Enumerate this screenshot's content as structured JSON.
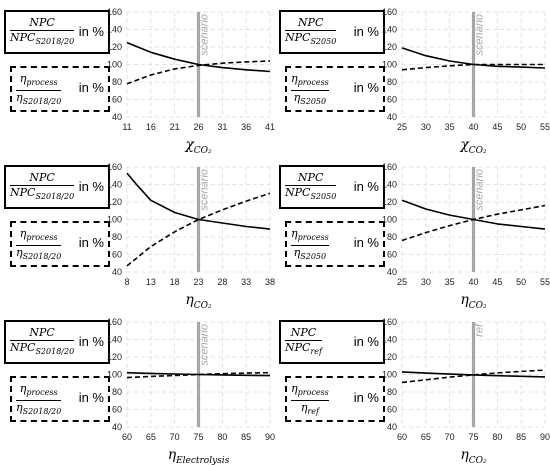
{
  "chart_data": [
    {
      "type": "line",
      "legend": {
        "npc": {
          "num": "NPC",
          "den": "NPC",
          "den_sub": "S2018/20",
          "suffix": "in %"
        },
        "eta": {
          "num": "η",
          "num_sub": "process",
          "den": "η",
          "den_sub": "S2018/20",
          "suffix": "in %"
        }
      },
      "xlabel": {
        "main": "χ",
        "sub": "CO₂"
      },
      "marker": {
        "x": 26,
        "label": "scenario"
      },
      "xlim": [
        11,
        41
      ],
      "xticks": [
        11,
        16,
        21,
        26,
        31,
        36,
        41
      ],
      "ylim": [
        40,
        160
      ],
      "yticks": [
        40,
        60,
        80,
        100,
        120,
        140,
        160
      ],
      "series": [
        {
          "style": "solid",
          "points": [
            [
              11,
              125
            ],
            [
              16,
              114
            ],
            [
              21,
              106
            ],
            [
              26,
              100
            ],
            [
              31,
              96.5
            ],
            [
              36,
              94
            ],
            [
              41,
              92
            ]
          ]
        },
        {
          "style": "dashed",
          "points": [
            [
              11,
              78
            ],
            [
              16,
              88
            ],
            [
              21,
              95
            ],
            [
              26,
              99
            ],
            [
              31,
              101.5
            ],
            [
              36,
              103
            ],
            [
              41,
              104
            ]
          ]
        }
      ]
    },
    {
      "type": "line",
      "legend": {
        "npc": {
          "num": "NPC",
          "den": "NPC",
          "den_sub": "S2050",
          "suffix": "in %"
        },
        "eta": {
          "num": "η",
          "num_sub": "process",
          "den": "η",
          "den_sub": "S2050",
          "suffix": "in %"
        }
      },
      "xlabel": {
        "main": "χ",
        "sub": "CO₂"
      },
      "marker": {
        "x": 40,
        "label": "scenario"
      },
      "xlim": [
        25,
        55
      ],
      "xticks": [
        25,
        30,
        35,
        40,
        45,
        50,
        55
      ],
      "ylim": [
        40,
        160
      ],
      "yticks": [
        40,
        60,
        80,
        100,
        120,
        140,
        160
      ],
      "series": [
        {
          "style": "solid",
          "points": [
            [
              25,
              119
            ],
            [
              30,
              110
            ],
            [
              35,
              104
            ],
            [
              40,
              100
            ],
            [
              45,
              98
            ],
            [
              50,
              97
            ],
            [
              55,
              96
            ]
          ]
        },
        {
          "style": "dashed",
          "points": [
            [
              25,
              94
            ],
            [
              30,
              96.5
            ],
            [
              35,
              98.5
            ],
            [
              40,
              100
            ],
            [
              45,
              100
            ],
            [
              50,
              100
            ],
            [
              55,
              100
            ]
          ]
        }
      ]
    },
    {
      "type": "line",
      "legend": {
        "npc": {
          "num": "NPC",
          "den": "NPC",
          "den_sub": "S2018/20",
          "suffix": "in %"
        },
        "eta": {
          "num": "η",
          "num_sub": "process",
          "den": "η",
          "den_sub": "S2018/20",
          "suffix": "in %"
        }
      },
      "xlabel": {
        "main": "η",
        "sub": "CO₂"
      },
      "marker": {
        "x": 23,
        "label": "scenario"
      },
      "xlim": [
        8,
        38
      ],
      "xticks": [
        8,
        13,
        18,
        23,
        28,
        33,
        38
      ],
      "ylim": [
        40,
        160
      ],
      "yticks": [
        40,
        60,
        80,
        100,
        120,
        140,
        160
      ],
      "series": [
        {
          "style": "solid",
          "points": [
            [
              8,
              153
            ],
            [
              10,
              140
            ],
            [
              13,
              122
            ],
            [
              18,
              108
            ],
            [
              23,
              100
            ],
            [
              28,
              96
            ],
            [
              33,
              92
            ],
            [
              38,
              89
            ]
          ]
        },
        {
          "style": "dashed",
          "points": [
            [
              8,
              47
            ],
            [
              13,
              69
            ],
            [
              18,
              86
            ],
            [
              23,
              100
            ],
            [
              28,
              111
            ],
            [
              33,
              121
            ],
            [
              38,
              130
            ]
          ]
        }
      ]
    },
    {
      "type": "line",
      "legend": {
        "npc": {
          "num": "NPC",
          "den": "NPC",
          "den_sub": "S2050",
          "suffix": "in %"
        },
        "eta": {
          "num": "η",
          "num_sub": "process",
          "den": "η",
          "den_sub": "S2050",
          "suffix": "in %"
        }
      },
      "xlabel": {
        "main": "η",
        "sub": "CO₂"
      },
      "marker": {
        "x": 40,
        "label": "scenario"
      },
      "xlim": [
        25,
        55
      ],
      "xticks": [
        25,
        30,
        35,
        40,
        45,
        50,
        55
      ],
      "ylim": [
        40,
        160
      ],
      "yticks": [
        40,
        60,
        80,
        100,
        120,
        140,
        160
      ],
      "series": [
        {
          "style": "solid",
          "points": [
            [
              25,
              122
            ],
            [
              30,
              112
            ],
            [
              35,
              105
            ],
            [
              40,
              100
            ],
            [
              45,
              95
            ],
            [
              50,
              92
            ],
            [
              55,
              89
            ]
          ]
        },
        {
          "style": "dashed",
          "points": [
            [
              25,
              76
            ],
            [
              30,
              85
            ],
            [
              35,
              93
            ],
            [
              40,
              100
            ],
            [
              45,
              106
            ],
            [
              50,
              111
            ],
            [
              55,
              116
            ]
          ]
        }
      ]
    },
    {
      "type": "line",
      "legend": {
        "npc": {
          "num": "NPC",
          "den": "NPC",
          "den_sub": "S2018/20",
          "suffix": "in %"
        },
        "eta": {
          "num": "η",
          "num_sub": "process",
          "den": "η",
          "den_sub": "S2018/20",
          "suffix": "in %"
        }
      },
      "xlabel": {
        "main": "η",
        "sub": "Electrolysis"
      },
      "marker": {
        "x": 75,
        "label": "scenario"
      },
      "xlim": [
        60,
        90
      ],
      "xticks": [
        60,
        65,
        70,
        75,
        80,
        85,
        90
      ],
      "ylim": [
        40,
        160
      ],
      "yticks": [
        40,
        60,
        80,
        100,
        120,
        140,
        160
      ],
      "series": [
        {
          "style": "solid",
          "points": [
            [
              60,
              102
            ],
            [
              65,
              101.3
            ],
            [
              70,
              100.6
            ],
            [
              75,
              100
            ],
            [
              80,
              99.5
            ],
            [
              85,
              99.1
            ],
            [
              90,
              98.8
            ]
          ]
        },
        {
          "style": "dashed",
          "points": [
            [
              60,
              96.5
            ],
            [
              65,
              97.8
            ],
            [
              70,
              98.9
            ],
            [
              75,
              100
            ],
            [
              80,
              100.9
            ],
            [
              85,
              101.6
            ],
            [
              90,
              102.2
            ]
          ]
        }
      ]
    },
    {
      "type": "line",
      "legend": {
        "npc": {
          "num": "NPC",
          "den": "NPC",
          "den_sub": "ref",
          "suffix": "in %"
        },
        "eta": {
          "num": "η",
          "num_sub": "process",
          "den": "η",
          "den_sub": "ref",
          "suffix": "in %"
        }
      },
      "xlabel": {
        "main": "η",
        "sub": "CO₂"
      },
      "marker": {
        "x": 75,
        "label": "ref"
      },
      "xlim": [
        60,
        90
      ],
      "xticks": [
        60,
        65,
        70,
        75,
        80,
        85,
        90
      ],
      "ylim": [
        40,
        160
      ],
      "yticks": [
        40,
        60,
        80,
        100,
        120,
        140,
        160
      ],
      "series": [
        {
          "style": "solid",
          "points": [
            [
              60,
              103
            ],
            [
              65,
              101.6
            ],
            [
              70,
              100.5
            ],
            [
              75,
              99.5
            ],
            [
              80,
              98.6
            ],
            [
              85,
              97.9
            ],
            [
              90,
              97.3
            ]
          ]
        },
        {
          "style": "dashed",
          "points": [
            [
              60,
              91
            ],
            [
              65,
              94
            ],
            [
              70,
              97
            ],
            [
              75,
              99.5
            ],
            [
              80,
              101.8
            ],
            [
              85,
              103.5
            ],
            [
              90,
              105
            ]
          ]
        }
      ]
    }
  ]
}
